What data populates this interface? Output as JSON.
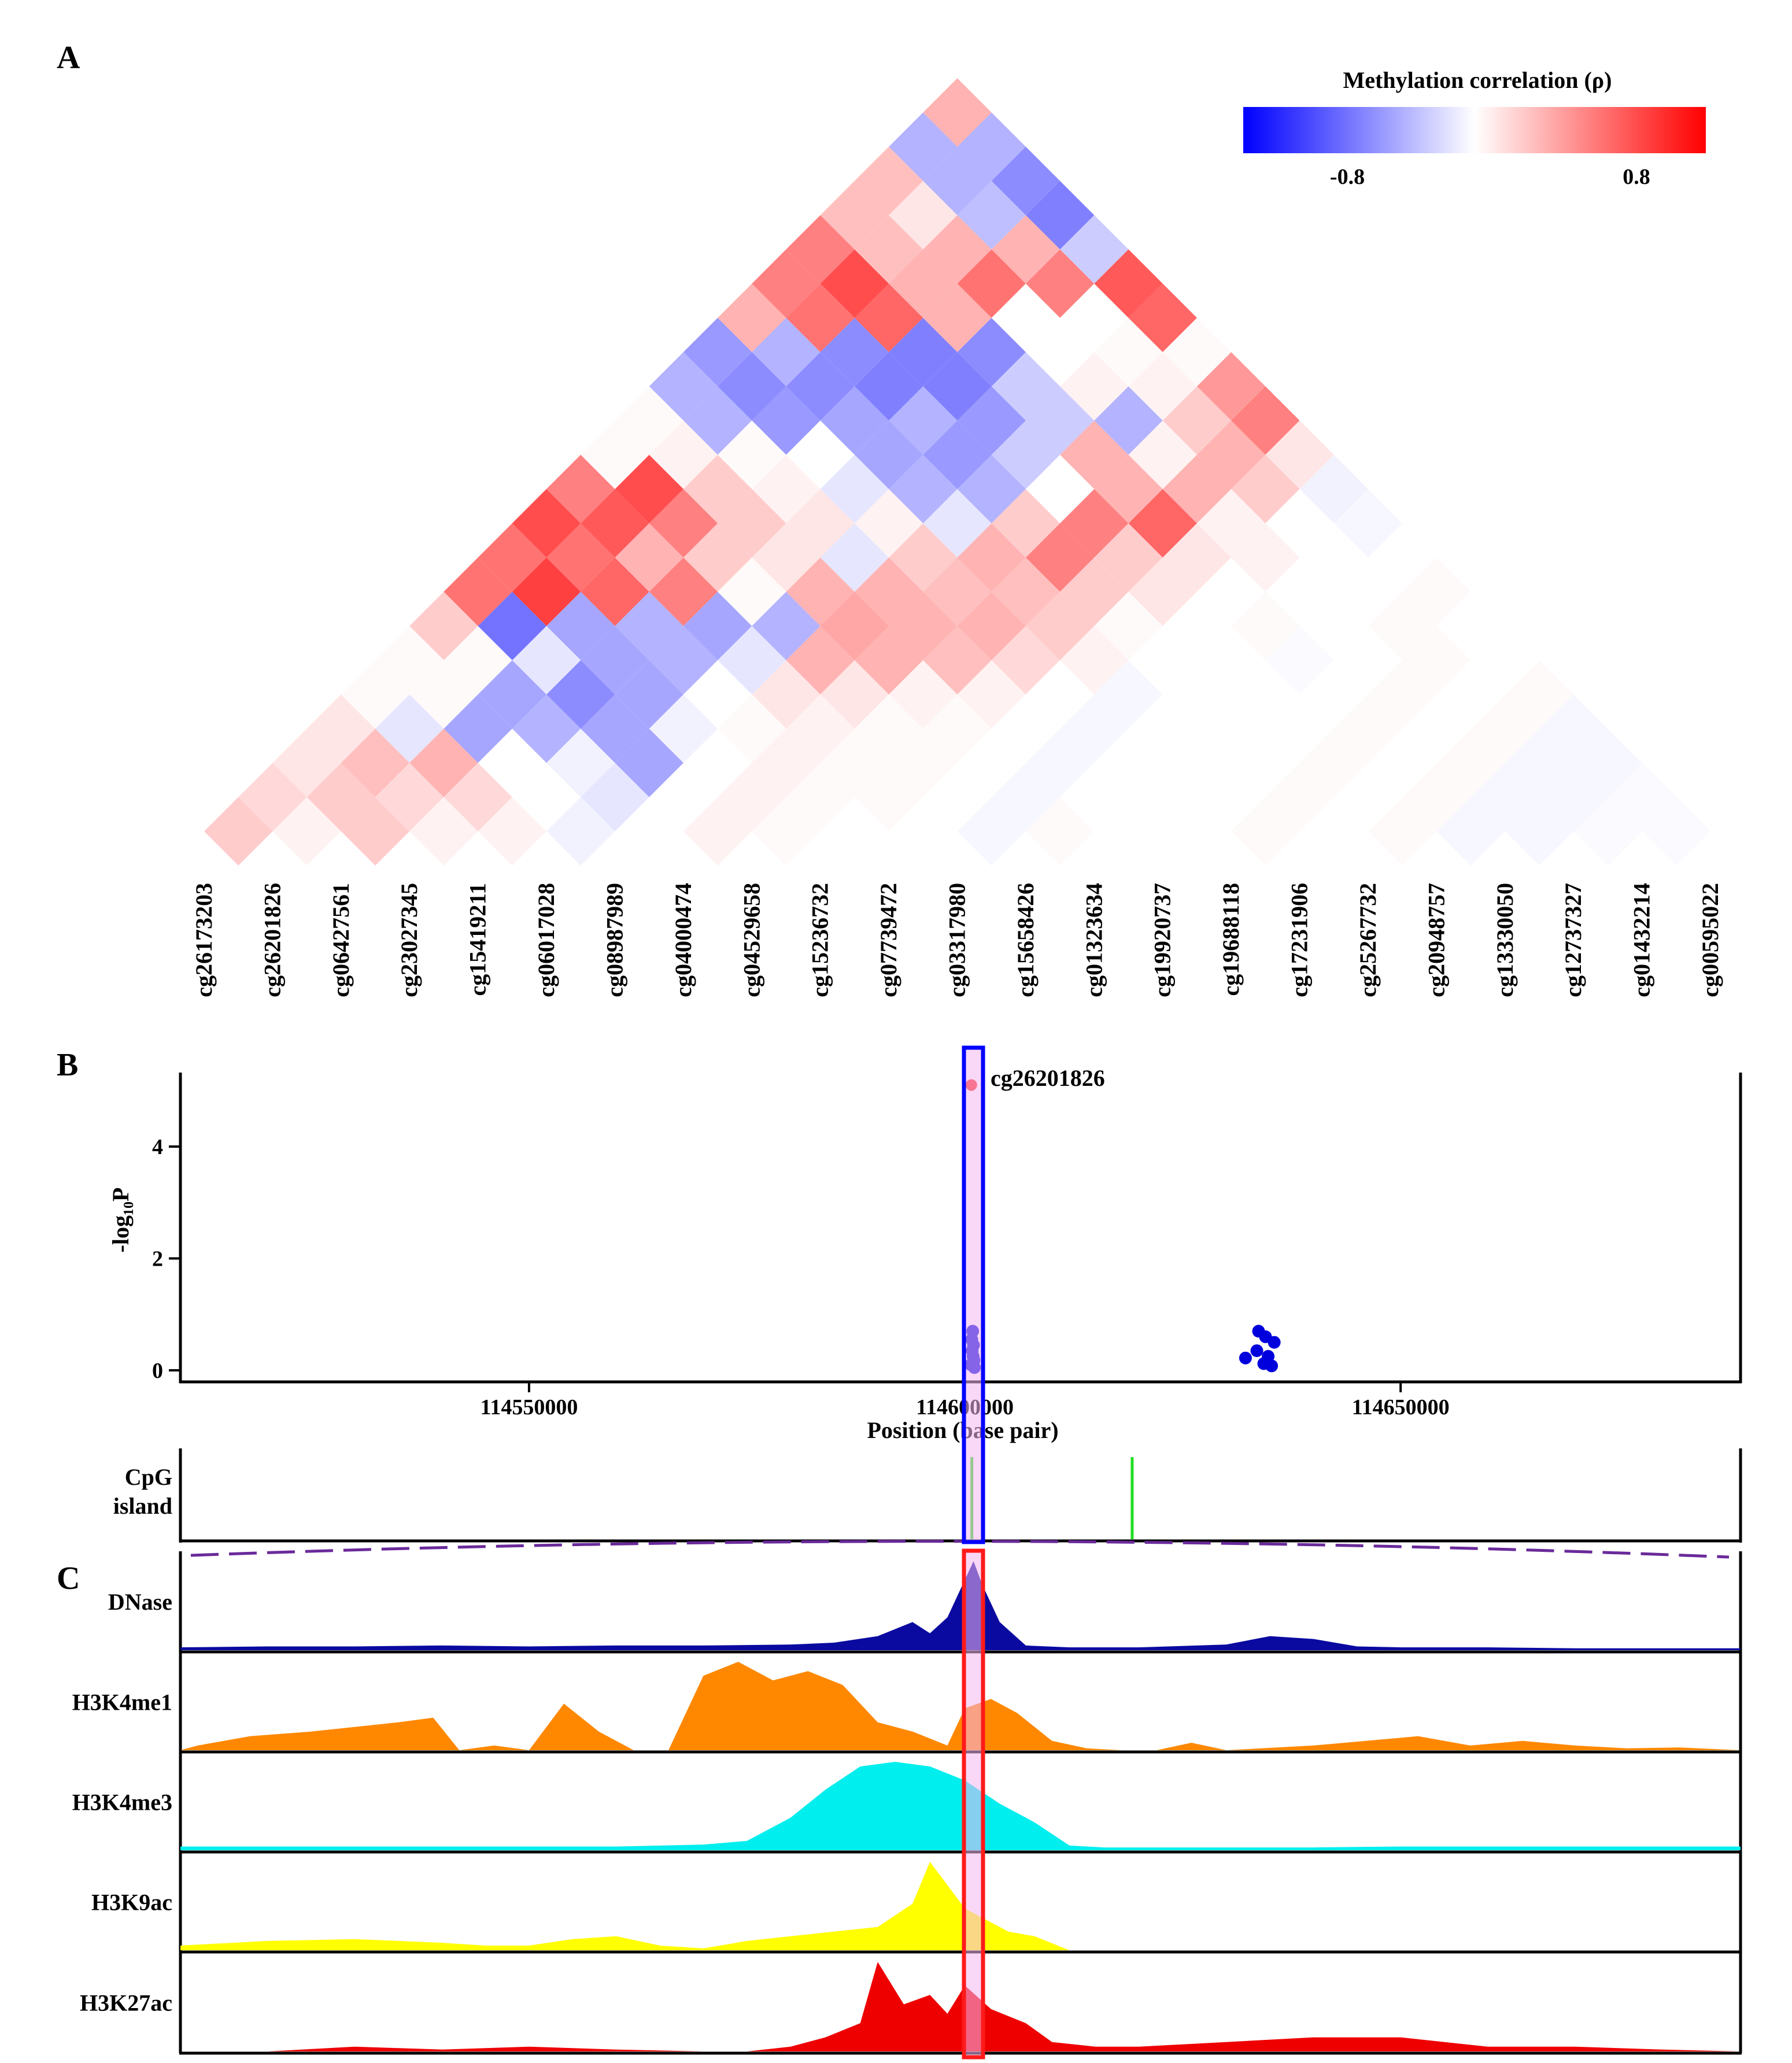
{
  "panels": {
    "a": "A",
    "b": "B",
    "c": "C"
  },
  "colors": {
    "negative": "#0000ff",
    "positive": "#ff0000",
    "neutral": "#ffffff",
    "highlight_blue": "#0000ff",
    "highlight_red": "#ff1a1a",
    "highlight_fill": "#f4b6f0",
    "cpg_island": "#22dd22",
    "recomb_line": "#6a2a9a",
    "dnase": "#0a0aa0",
    "h3k4me1": "#ff8800",
    "h3k4me3": "#00eeee",
    "h3k9ac": "#ffff00",
    "h3k27ac": "#ee0000",
    "highlighted_cpg_label": "#e00000"
  },
  "chart_data": [
    {
      "id": "methylation-heatmap",
      "type": "heatmap",
      "title": "Methylation correlation (ρ)",
      "legend": {
        "title": "Methylation correlation (ρ)",
        "min_label": "-0.8",
        "max_label": "0.8",
        "range": [
          -1,
          1
        ],
        "placement": "top-right"
      },
      "highlighted": "cg26201826",
      "cpgs": [
        "cg26173203",
        "cg26201826",
        "cg06427561",
        "cg23027345",
        "cg15419211",
        "cg06017028",
        "cg08987989",
        "cg04000474",
        "cg04529658",
        "cg15236732",
        "cg07739472",
        "cg03317980",
        "cg15658426",
        "cg01323634",
        "cg19920737",
        "cg19688118",
        "cg17231906",
        "cg25267732",
        "cg20948757",
        "cg13330050",
        "cg12737327",
        "cg01432214",
        "cg00595022"
      ],
      "correlations": [
        [
          0.2,
          0.05,
          0.2,
          0.05,
          0.05,
          -0.05,
          0.0,
          0.05,
          0.02,
          0.0,
          0.0,
          -0.03,
          0.02,
          0.0,
          0.0,
          0.02,
          0.0,
          0.02,
          -0.03,
          -0.03,
          -0.02,
          -0.02
        ],
        [
          0.15,
          0.2,
          0.15,
          0.15,
          0.0,
          -0.1,
          0.0,
          0.05,
          0.02,
          0.02,
          0.0,
          -0.03,
          0.0,
          0.0,
          0.0,
          0.02,
          0.0,
          0.02,
          -0.03,
          -0.03,
          -0.02
        ],
        [
          0.1,
          0.25,
          0.3,
          0.0,
          -0.05,
          -0.35,
          0.0,
          0.05,
          0.02,
          0.02,
          0.0,
          -0.03,
          0.0,
          0.0,
          0.0,
          0.02,
          0.0,
          0.02,
          -0.03,
          -0.03
        ],
        [
          0.1,
          -0.1,
          -0.35,
          -0.3,
          -0.35,
          -0.05,
          0.02,
          0.05,
          0.02,
          0.02,
          0.0,
          -0.03,
          0.0,
          0.0,
          0.0,
          0.02,
          0.0,
          0.02,
          -0.03
        ],
        [
          0.02,
          0.02,
          -0.35,
          -0.45,
          -0.35,
          0.0,
          0.1,
          0.1,
          0.05,
          0.05,
          0.0,
          -0.03,
          0.0,
          0.0,
          0.0,
          0.02,
          0.0,
          0.02
        ],
        [
          0.02,
          0.02,
          -0.1,
          -0.35,
          -0.3,
          -0.1,
          0.3,
          0.3,
          0.25,
          0.15,
          0.05,
          0.0,
          0.0,
          -0.02,
          0.0,
          0.02,
          0.0
        ],
        [
          0.2,
          -0.55,
          -0.35,
          -0.3,
          -0.35,
          -0.3,
          0.35,
          0.3,
          0.3,
          0.2,
          0.02,
          0.0,
          0.02,
          0.0,
          0.02,
          0.0
        ],
        [
          0.55,
          0.75,
          0.6,
          0.5,
          0.02,
          0.3,
          0.3,
          0.25,
          0.25,
          0.2,
          0.1,
          0.0,
          0.0,
          0.0,
          0.02
        ],
        [
          0.55,
          0.55,
          0.3,
          0.2,
          0.1,
          -0.1,
          0.2,
          0.3,
          0.5,
          0.2,
          0.1,
          0.05,
          0.0,
          0.0
        ],
        [
          0.7,
          0.65,
          0.5,
          0.2,
          0.1,
          0.05,
          -0.1,
          0.2,
          0.5,
          0.6,
          0.05,
          0.0,
          -0.03
        ],
        [
          0.5,
          0.7,
          0.2,
          0.05,
          -0.1,
          -0.3,
          -0.3,
          0.0,
          0.3,
          0.3,
          0.2,
          -0.05
        ],
        [
          0.02,
          0.05,
          0.02,
          0.0,
          -0.35,
          -0.4,
          -0.2,
          0.3,
          0.05,
          0.3,
          0.1
        ],
        [
          0.02,
          -0.3,
          -0.4,
          -0.35,
          -0.3,
          -0.4,
          -0.2,
          -0.3,
          0.2,
          0.5
        ],
        [
          -0.3,
          -0.45,
          -0.45,
          -0.5,
          -0.5,
          -0.2,
          0.05,
          0.05,
          0.4
        ],
        [
          -0.4,
          -0.3,
          -0.45,
          -0.5,
          -0.45,
          0.0,
          0.02,
          0.02
        ],
        [
          0.3,
          0.55,
          0.6,
          0.3,
          0.0,
          0.0,
          0.6
        ],
        [
          0.5,
          0.7,
          0.3,
          0.55,
          0.5,
          0.65
        ],
        [
          0.5,
          0.25,
          0.3,
          0.3,
          -0.2
        ],
        [
          0.25,
          0.1,
          -0.25,
          -0.5
        ],
        [
          0.25,
          -0.3,
          -0.45
        ],
        [
          -0.3,
          -0.3
        ],
        [
          0.3
        ]
      ]
    },
    {
      "id": "association-scatter",
      "type": "scatter",
      "ylabel": "-log₁₀P",
      "xlabel": "Position (base pair)",
      "xlim": [
        114510000,
        114689000
      ],
      "ylim": [
        -0.2,
        5.4
      ],
      "xticks": [
        114550000,
        114600000,
        114650000
      ],
      "xtick_labels": [
        "114550000",
        "114600000",
        "114650000"
      ],
      "yticks": [
        0,
        2,
        4
      ],
      "ytick_labels": [
        "0",
        "2",
        "4"
      ],
      "points": [
        {
          "x": 114600750,
          "y": 5.1,
          "label": "cg26201826",
          "lead": true
        },
        {
          "x": 114600900,
          "y": 0.7
        },
        {
          "x": 114600800,
          "y": 0.55
        },
        {
          "x": 114601000,
          "y": 0.45
        },
        {
          "x": 114600850,
          "y": 0.35
        },
        {
          "x": 114600950,
          "y": 0.25
        },
        {
          "x": 114601050,
          "y": 0.18
        },
        {
          "x": 114600700,
          "y": 0.1
        },
        {
          "x": 114601100,
          "y": 0.05
        },
        {
          "x": 114632200,
          "y": 0.22
        },
        {
          "x": 114633500,
          "y": 0.35
        },
        {
          "x": 114633700,
          "y": 0.7
        },
        {
          "x": 114634500,
          "y": 0.6
        },
        {
          "x": 114634800,
          "y": 0.25
        },
        {
          "x": 114634300,
          "y": 0.12
        },
        {
          "x": 114635200,
          "y": 0.08
        },
        {
          "x": 114635500,
          "y": 0.5
        }
      ],
      "highlight_x": [
        114600000,
        114602000
      ],
      "lead_label": "cg26201826"
    },
    {
      "id": "cpg-island-track",
      "type": "area",
      "label_line1": "CpG",
      "label_line2": "island",
      "islands": [
        114600800,
        114619200
      ]
    },
    {
      "id": "chromatin-tracks",
      "type": "area",
      "x_range": [
        114510000,
        114689000
      ],
      "tracks": [
        {
          "name": "DNase",
          "color": "#0a0aa0",
          "x": [
            114510000,
            114520000,
            114530000,
            114540000,
            114550000,
            114560000,
            114570000,
            114580000,
            114585000,
            114590000,
            114594000,
            114596000,
            114598000,
            114600000,
            114601000,
            114602000,
            114604000,
            114607000,
            114612000,
            114620000,
            114630000,
            114635000,
            114640000,
            114645000,
            114650000,
            114660000,
            114670000,
            114680000,
            114689000
          ],
          "y": [
            0.03,
            0.04,
            0.04,
            0.05,
            0.04,
            0.05,
            0.05,
            0.06,
            0.08,
            0.15,
            0.3,
            0.18,
            0.35,
            0.75,
            0.95,
            0.7,
            0.3,
            0.05,
            0.03,
            0.03,
            0.06,
            0.15,
            0.12,
            0.04,
            0.03,
            0.03,
            0.02,
            0.02,
            0.02
          ]
        },
        {
          "name": "H3K4me1",
          "color": "#ff8800",
          "x": [
            114510000,
            114512000,
            114518000,
            114525000,
            114530000,
            114535000,
            114539000,
            114542000,
            114546000,
            114550000,
            114554000,
            114558000,
            114562000,
            114566000,
            114570000,
            114574000,
            114578000,
            114582000,
            114586000,
            114590000,
            114594000,
            114598000,
            114600000,
            114603000,
            114606000,
            114610000,
            114614000,
            114618000,
            114622000,
            114626000,
            114630000,
            114634000,
            114640000,
            114646000,
            114652000,
            114658000,
            114664000,
            114670000,
            114676000,
            114682000,
            114689000
          ],
          "y": [
            0.0,
            0.05,
            0.15,
            0.2,
            0.25,
            0.3,
            0.35,
            0.0,
            0.05,
            0.0,
            0.5,
            0.2,
            0.0,
            0.0,
            0.8,
            0.95,
            0.75,
            0.85,
            0.7,
            0.3,
            0.2,
            0.05,
            0.45,
            0.55,
            0.4,
            0.1,
            0.02,
            0.0,
            0.0,
            0.08,
            0.0,
            0.02,
            0.05,
            0.1,
            0.15,
            0.05,
            0.1,
            0.05,
            0.02,
            0.03,
            0.0
          ]
        },
        {
          "name": "H3K4me3",
          "color": "#00eeee",
          "x": [
            114510000,
            114520000,
            114530000,
            114540000,
            114550000,
            114560000,
            114570000,
            114575000,
            114580000,
            114584000,
            114588000,
            114592000,
            114596000,
            114600000,
            114604000,
            114608000,
            114612000,
            114616000,
            114620000,
            114630000,
            114640000,
            114650000,
            114660000,
            114670000,
            114680000,
            114689000
          ],
          "y": [
            0.04,
            0.04,
            0.04,
            0.04,
            0.04,
            0.04,
            0.06,
            0.1,
            0.35,
            0.65,
            0.9,
            0.95,
            0.9,
            0.75,
            0.5,
            0.3,
            0.05,
            0.03,
            0.03,
            0.03,
            0.03,
            0.04,
            0.04,
            0.04,
            0.04,
            0.04
          ]
        },
        {
          "name": "H3K9ac",
          "color": "#ffff00",
          "x": [
            114510000,
            114520000,
            114530000,
            114540000,
            114545000,
            114550000,
            114555000,
            114560000,
            114565000,
            114570000,
            114575000,
            114580000,
            114585000,
            114590000,
            114594000,
            114596000,
            114598000,
            114600000,
            114602000,
            114605000,
            114608000,
            114612000,
            114620000,
            114689000
          ],
          "y": [
            0.05,
            0.1,
            0.12,
            0.08,
            0.05,
            0.05,
            0.12,
            0.15,
            0.05,
            0.02,
            0.1,
            0.15,
            0.2,
            0.25,
            0.5,
            0.95,
            0.7,
            0.45,
            0.35,
            0.2,
            0.15,
            0.0,
            0.0,
            0.0
          ]
        },
        {
          "name": "H3K27ac",
          "color": "#ee0000",
          "x": [
            114510000,
            114520000,
            114530000,
            114540000,
            114550000,
            114560000,
            114570000,
            114575000,
            114580000,
            114584000,
            114588000,
            114590000,
            114593000,
            114596000,
            114598000,
            114600000,
            114603000,
            114607000,
            114610000,
            114615000,
            114620000,
            114630000,
            114640000,
            114650000,
            114660000,
            114670000,
            114680000,
            114689000
          ],
          "y": [
            0.0,
            0.0,
            0.05,
            0.02,
            0.05,
            0.02,
            0.0,
            0.0,
            0.05,
            0.15,
            0.3,
            0.95,
            0.5,
            0.6,
            0.4,
            0.7,
            0.45,
            0.3,
            0.1,
            0.05,
            0.05,
            0.1,
            0.15,
            0.15,
            0.05,
            0.05,
            0.02,
            0.0
          ]
        }
      ]
    }
  ]
}
